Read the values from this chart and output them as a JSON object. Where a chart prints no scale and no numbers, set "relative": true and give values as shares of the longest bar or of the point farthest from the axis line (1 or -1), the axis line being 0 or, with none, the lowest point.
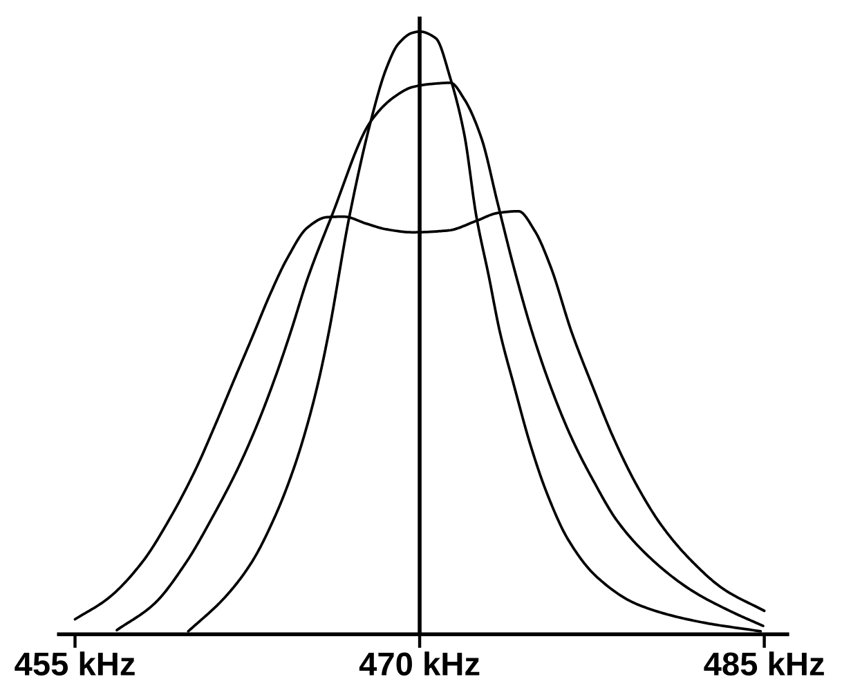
{
  "chart_data": {
    "type": "line",
    "relative": true,
    "xlim": [
      454.3,
      486
    ],
    "xticks": [
      {
        "value": 455,
        "label": "455 kHz"
      },
      {
        "value": 470,
        "label": "470 kHz"
      },
      {
        "value": 485,
        "label": "485 kHz"
      }
    ],
    "ref_lines": [
      {
        "axis": "x",
        "value": 470,
        "color": "#000000"
      }
    ],
    "series": [
      {
        "color": "#000000",
        "x": [
          459.93,
          461.49,
          462.68,
          463.72,
          464.5,
          465.12,
          465.64,
          466.05,
          466.94,
          467.87,
          468.54,
          469.06,
          469.69,
          470.0,
          470.7,
          471.34,
          471.94,
          472.47,
          473.01,
          473.49,
          474.09,
          474.84,
          475.54,
          476.45,
          477.69,
          479.46,
          482.15,
          484.84
        ],
        "values": [
          0.005,
          0.06,
          0.119,
          0.197,
          0.273,
          0.349,
          0.427,
          0.502,
          0.693,
          0.851,
          0.938,
          0.979,
          0.998,
          1.0,
          0.989,
          0.922,
          0.83,
          0.693,
          0.594,
          0.502,
          0.415,
          0.312,
          0.234,
          0.158,
          0.096,
          0.05,
          0.021,
          0.005
        ]
      },
      {
        "color": "#000000",
        "x": [
          456.82,
          458.43,
          459.83,
          461.02,
          462.06,
          462.94,
          463.72,
          464.39,
          465.12,
          466.16,
          467.87,
          468.91,
          469.69,
          470.48,
          471.34,
          471.94,
          472.69,
          473.39,
          474.09,
          474.89,
          475.7,
          476.61,
          477.53,
          478.6,
          480.0,
          481.83,
          483.6,
          484.95
        ],
        "values": [
          0.007,
          0.05,
          0.119,
          0.197,
          0.273,
          0.349,
          0.427,
          0.502,
          0.59,
          0.693,
          0.851,
          0.892,
          0.908,
          0.913,
          0.915,
          0.888,
          0.823,
          0.716,
          0.61,
          0.502,
          0.411,
          0.326,
          0.257,
          0.188,
          0.128,
          0.073,
          0.037,
          0.014
        ]
      },
      {
        "color": "#000000",
        "x": [
          455.0,
          456.45,
          457.91,
          459.2,
          460.24,
          461.12,
          461.9,
          462.68,
          463.5,
          464.24,
          465.12,
          465.95,
          466.68,
          467.71,
          468.54,
          469.69,
          471.24,
          472.47,
          473.39,
          474.3,
          475.0,
          475.7,
          476.61,
          477.53,
          478.39,
          479.41,
          480.54,
          481.83,
          483.23,
          485.0
        ],
        "values": [
          0.025,
          0.06,
          0.119,
          0.197,
          0.273,
          0.349,
          0.42,
          0.49,
          0.565,
          0.624,
          0.675,
          0.692,
          0.693,
          0.681,
          0.672,
          0.667,
          0.67,
          0.686,
          0.699,
          0.702,
          0.67,
          0.61,
          0.502,
          0.411,
          0.33,
          0.25,
          0.18,
          0.122,
          0.075,
          0.039
        ]
      }
    ]
  }
}
